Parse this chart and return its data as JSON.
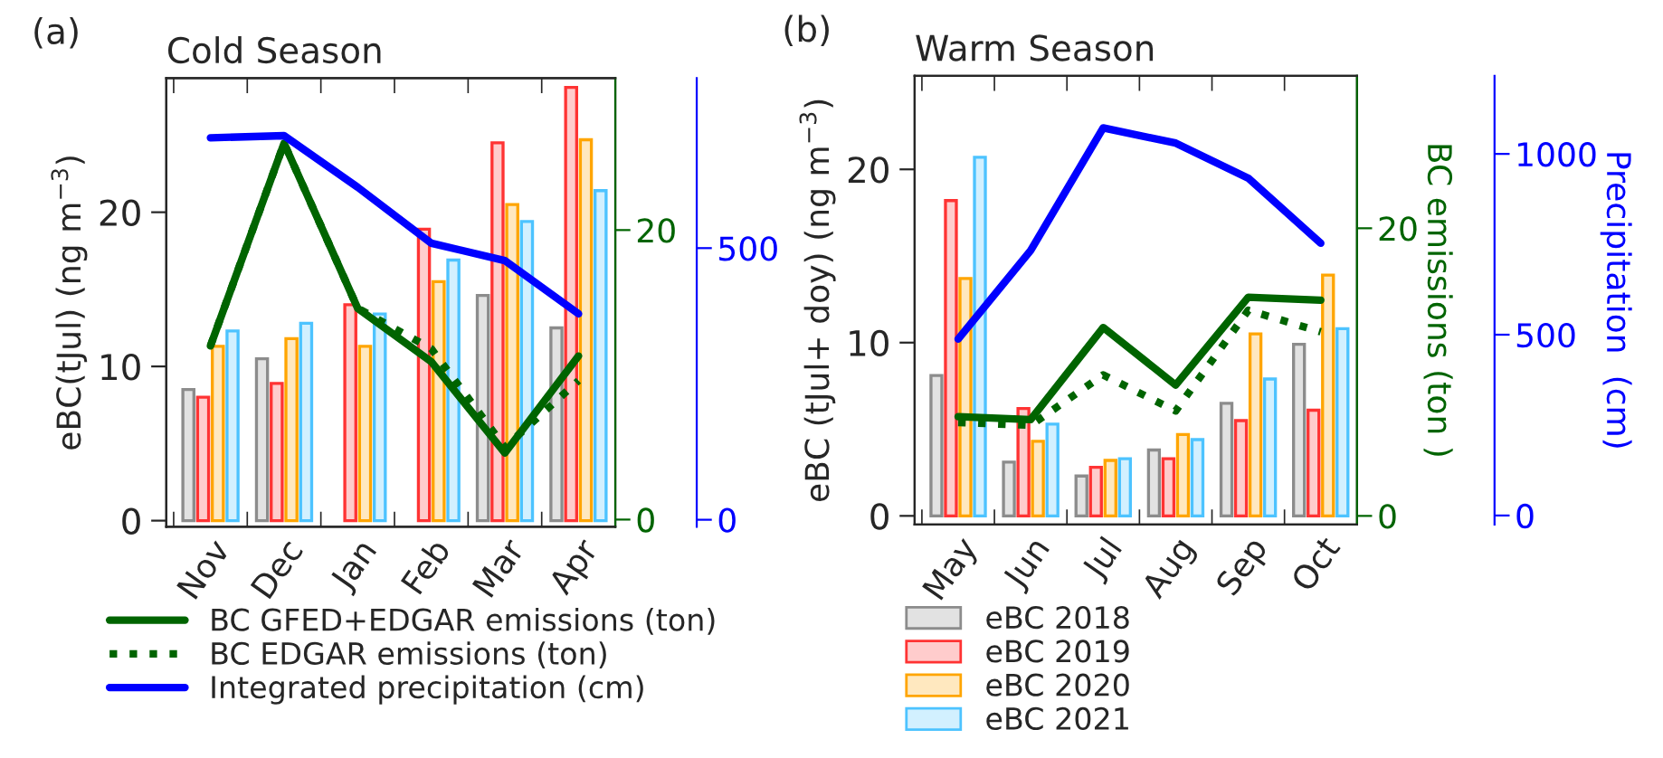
{
  "chart_data": [
    {
      "type": "bar",
      "title": "Cold Season",
      "annotations": [
        "(a)"
      ],
      "ylabel": "eBC(tJul) (ng m$^{−3}$)",
      "categories": [
        "Nov",
        "Dec",
        "Jan",
        "Feb",
        "Mar",
        "Apr"
      ],
      "ylim": [
        -0.4,
        28.7
      ],
      "yticks": [
        0,
        10,
        20
      ],
      "y2lim": [
        -0.5,
        30.5
      ],
      "y2ticks": [
        0,
        20
      ],
      "y3lim": [
        -13,
        813
      ],
      "y3ticks": [
        0,
        500
      ],
      "legend": "bottom",
      "grid": false,
      "series": [
        {
          "color": "#8c8c8c",
          "values": [
            8.5,
            10.5,
            null,
            null,
            14.6,
            12.5
          ]
        },
        {
          "color": "#ff3333",
          "values": [
            8.0,
            8.9,
            14.0,
            18.9,
            24.5,
            28.1
          ]
        },
        {
          "color": "#ffa500",
          "values": [
            11.3,
            11.8,
            11.3,
            15.5,
            20.5,
            24.7
          ]
        },
        {
          "color": "#4dc3ff",
          "values": [
            12.3,
            12.8,
            13.4,
            16.9,
            19.4,
            21.4
          ]
        },
        {
          "type": "line",
          "axis": "y2",
          "name": "BC GFED+EDGAR emissions (ton)",
          "color": "#006400",
          "line_style": "solid",
          "values": [
            12.0,
            26.0,
            14.6,
            10.9,
            4.6,
            11.3
          ]
        },
        {
          "type": "line",
          "axis": "y2",
          "name": "BC EDGAR emissions (ton)",
          "color": "#006400",
          "line_style": "dotted",
          "values": [
            12.0,
            26.0,
            14.6,
            11.8,
            5.0,
            9.6
          ]
        },
        {
          "type": "line",
          "axis": "y3",
          "name": "Integrated precipitation (cm)",
          "color": "#0000ff",
          "line_style": "solid",
          "values": [
            703,
            707,
            612,
            509,
            477,
            379
          ]
        }
      ]
    },
    {
      "type": "bar",
      "title": "Warm Season",
      "annotations": [
        "(b)"
      ],
      "ylabel": "eBC (tJul+ doy) (ng m$^{−3}$)",
      "y2label": "BC emissions (ton )",
      "y3label": "Precipitation  (cm)",
      "categories": [
        "May",
        "Jun",
        "Jul",
        "Aug",
        "Sep",
        "Oct"
      ],
      "ylim": [
        -0.5,
        25.4
      ],
      "yticks": [
        0,
        10,
        20
      ],
      "y2lim": [
        -0.6,
        30.6
      ],
      "y2ticks": [
        0,
        20
      ],
      "y3lim": [
        -25,
        1216
      ],
      "y3ticks": [
        0,
        500,
        1000
      ],
      "legend": "bottom",
      "grid": false,
      "series": [
        {
          "name": "eBC 2018",
          "color": "#8c8c8c",
          "values": [
            8.1,
            3.1,
            2.3,
            3.8,
            6.5,
            9.9
          ]
        },
        {
          "name": "eBC 2019",
          "color": "#ff3333",
          "values": [
            18.2,
            6.2,
            2.8,
            3.3,
            5.5,
            6.1
          ]
        },
        {
          "name": "eBC 2020",
          "color": "#ffa500",
          "values": [
            13.7,
            4.3,
            3.2,
            4.7,
            10.5,
            13.9
          ]
        },
        {
          "name": "eBC 2021",
          "color": "#4dc3ff",
          "values": [
            20.7,
            5.3,
            3.3,
            4.4,
            7.9,
            10.8
          ]
        },
        {
          "type": "line",
          "axis": "y2",
          "color": "#006400",
          "line_style": "solid",
          "values": [
            6.9,
            6.7,
            13.1,
            9.1,
            15.2,
            15.0
          ]
        },
        {
          "type": "line",
          "axis": "y2",
          "color": "#006400",
          "line_style": "dotted",
          "values": [
            6.5,
            6.3,
            9.8,
            7.3,
            14.3,
            12.8
          ]
        },
        {
          "type": "line",
          "axis": "y3",
          "color": "#0000ff",
          "line_style": "solid",
          "values": [
            488,
            733,
            1072,
            1030,
            933,
            753
          ]
        }
      ]
    }
  ]
}
